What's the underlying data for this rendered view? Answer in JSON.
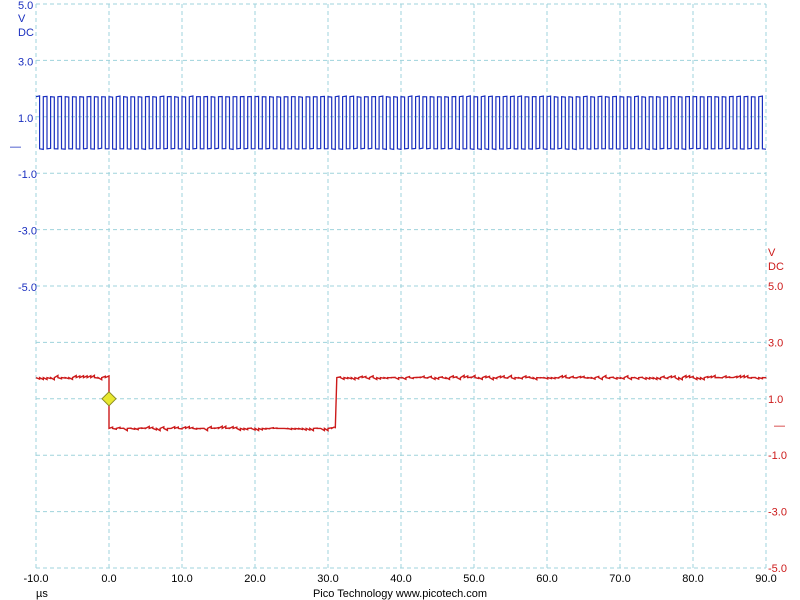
{
  "chart_data": {
    "type": "line",
    "xlabel": "µs",
    "footer": "Pico Technology  www.picotech.com",
    "x_ticks": [
      "-10.0",
      "0.0",
      "10.0",
      "20.0",
      "30.0",
      "40.0",
      "50.0",
      "60.0",
      "70.0",
      "80.0",
      "90.0"
    ],
    "xlim": [
      -10,
      90
    ],
    "grid": true,
    "trigger_marker": {
      "time_us": 0.0,
      "level_v": 1.0,
      "color": "#e8e830"
    },
    "channels": [
      {
        "id": "A",
        "color": "#1a2fbf",
        "unit_label": "V",
        "coupling_label": "DC",
        "y_ticks": [
          "5.0",
          "3.0",
          "1.0",
          "-1.0",
          "-3.0",
          "-5.0"
        ],
        "ylim": [
          -5.0,
          5.0
        ],
        "zero_marker": "—",
        "signal": {
          "kind": "square_wave",
          "high_v": 1.75,
          "low_v": -0.1,
          "period_us": 1.0,
          "glitch_noise_v": 0.05
        }
      },
      {
        "id": "B",
        "color": "#cc1a1a",
        "unit_label": "V",
        "coupling_label": "DC",
        "y_ticks": [
          "5.0",
          "3.0",
          "1.0",
          "-1.0",
          "-3.0",
          "-5.0"
        ],
        "ylim": [
          -5.0,
          5.0
        ],
        "zero_marker": "—",
        "signal": {
          "kind": "step",
          "points": [
            [
              -10.0,
              1.75
            ],
            [
              0.0,
              1.75
            ],
            [
              0.0,
              -0.05
            ],
            [
              31.0,
              -0.05
            ],
            [
              31.2,
              1.75
            ],
            [
              90.0,
              1.75
            ]
          ],
          "noise_v": 0.08
        }
      }
    ]
  }
}
